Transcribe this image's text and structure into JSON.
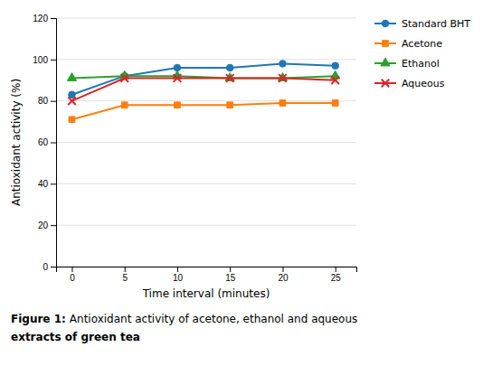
{
  "chart_data": {
    "type": "line",
    "x": [
      0,
      5,
      10,
      15,
      20,
      25
    ],
    "series": [
      {
        "name": "Standard BHT",
        "marker": "circle",
        "values": [
          83,
          92,
          96,
          96,
          98,
          97
        ]
      },
      {
        "name": "Acetone",
        "marker": "square",
        "values": [
          71,
          78,
          78,
          78,
          79,
          79
        ]
      },
      {
        "name": "Ethanol",
        "marker": "triangle",
        "values": [
          91,
          92,
          92,
          91,
          91,
          92
        ]
      },
      {
        "name": "Aqueous",
        "marker": "x",
        "values": [
          80,
          91,
          91,
          91,
          91,
          90
        ]
      }
    ],
    "x_label": "Time interval (minutes)",
    "y_label": "Antioxidant activity (%)",
    "xlim": [
      -1.5,
      27
    ],
    "xticks": [
      0,
      5,
      10,
      15,
      20,
      25
    ],
    "ylim": [
      0,
      120
    ],
    "yticks": [
      0,
      20,
      40,
      60,
      80,
      100,
      120
    ],
    "grid": true,
    "legend": "right",
    "caption": [
      "Figure 1:",
      "Antioxidant activity of acetone, ethanol and aqueous",
      "extracts of green tea"
    ]
  }
}
